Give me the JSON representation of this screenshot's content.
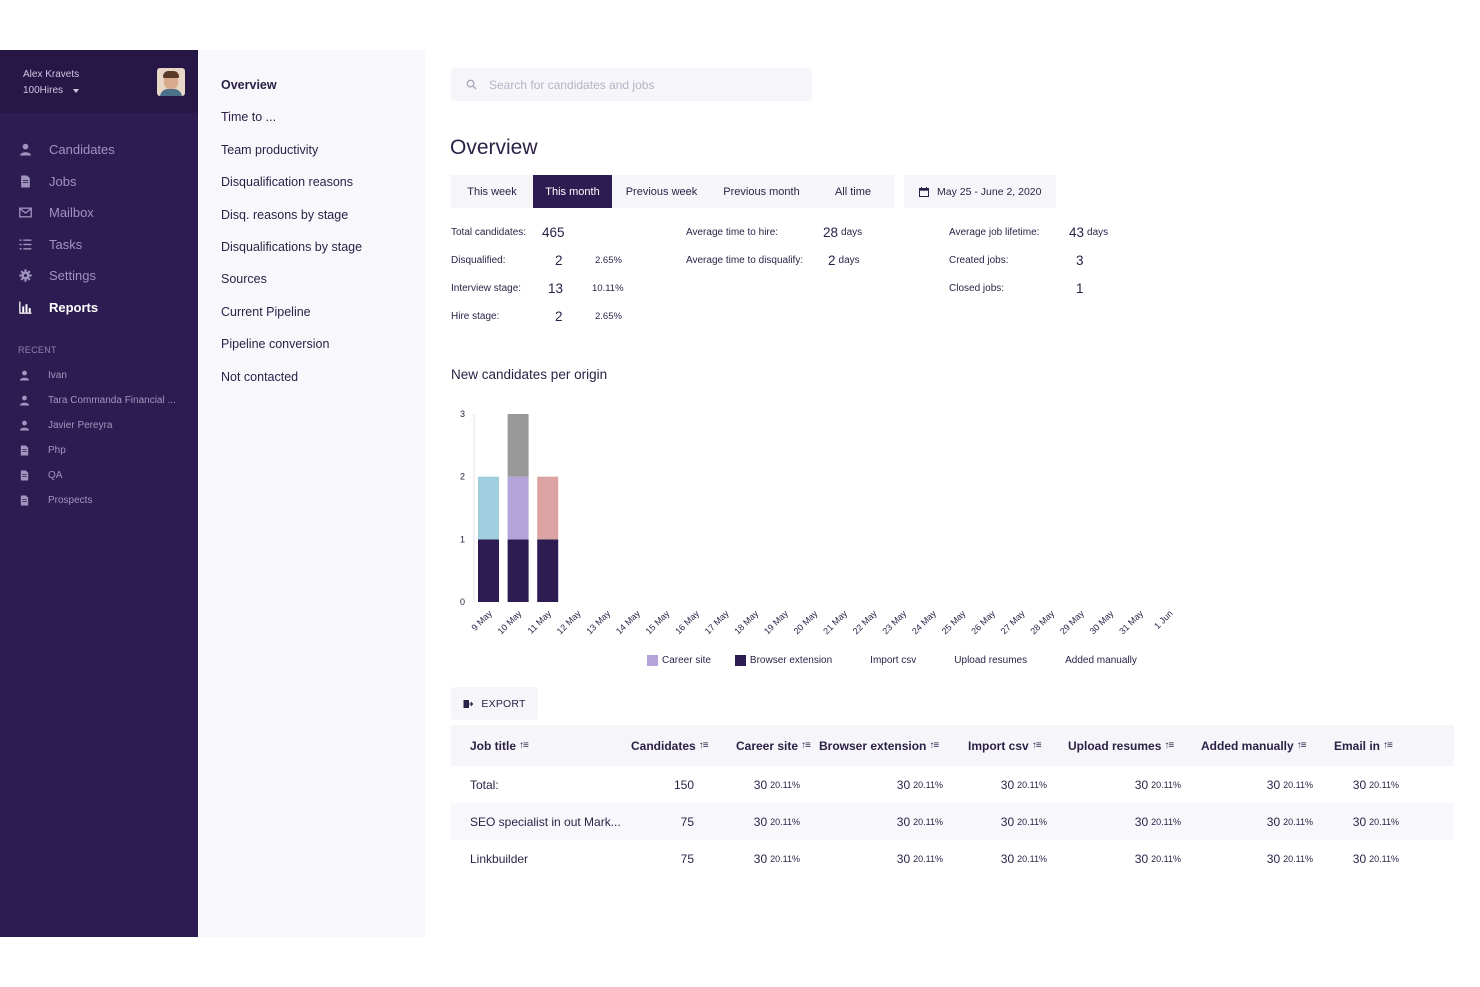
{
  "user": {
    "name": "Alex Kravets",
    "org": "100Hires"
  },
  "nav": [
    {
      "label": "Candidates",
      "icon": "person-icon",
      "active": false
    },
    {
      "label": "Jobs",
      "icon": "document-icon",
      "active": false
    },
    {
      "label": "Mailbox",
      "icon": "mail-icon",
      "active": false
    },
    {
      "label": "Tasks",
      "icon": "tasks-icon",
      "active": false
    },
    {
      "label": "Settings",
      "icon": "gear-icon",
      "active": false
    },
    {
      "label": "Reports",
      "icon": "bar-chart-icon",
      "active": true
    }
  ],
  "recent": {
    "label": "RECENT",
    "items": [
      {
        "label": "Ivan",
        "icon": "person-icon"
      },
      {
        "label": "Tara Commanda Financial ...",
        "icon": "person-icon"
      },
      {
        "label": "Javier Pereyra",
        "icon": "person-icon"
      },
      {
        "label": "Php",
        "icon": "document-icon"
      },
      {
        "label": "QA",
        "icon": "document-icon"
      },
      {
        "label": "Prospects",
        "icon": "document-icon"
      }
    ]
  },
  "subnav": [
    "Overview",
    "Time to ...",
    "Team productivity",
    "Disqualification reasons",
    "Disq. reasons by stage",
    "Disqualifications by stage",
    "Sources",
    "Current Pipeline",
    "Pipeline conversion",
    "Not contacted"
  ],
  "search": {
    "placeholder": "Search for candidates and jobs"
  },
  "page_title": "Overview",
  "tabs": [
    "This week",
    "This month",
    "Previous week",
    "Previous month",
    "All time"
  ],
  "active_tab": "This month",
  "date_range": "May 25 - June 2, 2020",
  "stats": {
    "total_candidates": {
      "label": "Total candidates:",
      "value": "465"
    },
    "disqualified": {
      "label": "Disqualified:",
      "value": "2",
      "pct": "2.65%"
    },
    "interview_stage": {
      "label": "Interview stage:",
      "value": "13",
      "pct": "10.11%"
    },
    "hire_stage": {
      "label": "Hire stage:",
      "value": "2",
      "pct": "2.65%"
    },
    "avg_time_to_hire": {
      "label": "Average time to hire:",
      "value": "28",
      "unit": "days"
    },
    "avg_time_to_disqualify": {
      "label": "Average time to disqualify:",
      "value": "2",
      "unit": "days"
    },
    "avg_job_lifetime": {
      "label": "Average job lifetime:",
      "value": "43",
      "unit": "days"
    },
    "created_jobs": {
      "label": "Created jobs:",
      "value": "3"
    },
    "closed_jobs": {
      "label": "Closed jobs:",
      "value": "1"
    }
  },
  "chart_title": "New candidates per origin",
  "chart_data": {
    "type": "bar",
    "stacked": true,
    "title": "New candidates per origin",
    "categories": [
      "9 May",
      "10 May",
      "11 May",
      "12 May",
      "13 May",
      "14 May",
      "15 May",
      "16 May",
      "17 May",
      "18 May",
      "19 May",
      "20 May",
      "21 May",
      "22 May",
      "23 May",
      "24 May",
      "25 May",
      "26 May",
      "27 May",
      "28 May",
      "29 May",
      "30 May",
      "31 May",
      "1 Jun"
    ],
    "yticks": [
      0,
      1,
      2,
      3
    ],
    "ylim": [
      0,
      3
    ],
    "series": [
      {
        "name": "Browser extension",
        "color": "#2c1c52",
        "values": [
          1,
          1,
          1,
          0,
          0,
          0,
          0,
          0,
          0,
          0,
          0,
          0,
          0,
          0,
          0,
          0,
          0,
          0,
          0,
          0,
          0,
          0,
          0,
          0
        ]
      },
      {
        "name": "",
        "color": "#dca3a3",
        "values": [
          0,
          0,
          1,
          0,
          0,
          0,
          0,
          0,
          0,
          0,
          0,
          0,
          0,
          0,
          0,
          0,
          0,
          0,
          0,
          0,
          0,
          0,
          0,
          0
        ]
      },
      {
        "name": "",
        "color": "#9fcfde",
        "values": [
          1,
          0,
          0,
          0,
          0,
          0,
          0,
          0,
          0,
          0,
          0,
          0,
          0,
          0,
          0,
          0,
          0,
          0,
          0,
          0,
          0,
          0,
          0,
          0
        ]
      },
      {
        "name": "Career site",
        "color": "#b5a3dc",
        "values": [
          0,
          1,
          0,
          0,
          0,
          0,
          0,
          0,
          0,
          0,
          0,
          0,
          0,
          0,
          0,
          0,
          0,
          0,
          0,
          0,
          0,
          0,
          0,
          0
        ]
      },
      {
        "name": "",
        "color": "#999999",
        "values": [
          0,
          1,
          0,
          0,
          0,
          0,
          0,
          0,
          0,
          0,
          0,
          0,
          0,
          0,
          0,
          0,
          0,
          0,
          0,
          0,
          0,
          0,
          0,
          0
        ]
      }
    ],
    "legend": [
      {
        "label": "Career site",
        "color": "#b5a3dc"
      },
      {
        "label": "Browser extension",
        "color": "#2c1c52"
      },
      {
        "label": "Import csv",
        "color": ""
      },
      {
        "label": "Upload resumes",
        "color": ""
      },
      {
        "label": "Added manually",
        "color": ""
      }
    ]
  },
  "export_label": "EXPORT",
  "table": {
    "columns": [
      "Job title",
      "Candidates",
      "Career site",
      "Browser extension",
      "Import csv",
      "Upload resumes",
      "Added manually",
      "Email in"
    ],
    "rows": [
      {
        "title": "Total:",
        "candidates": "150",
        "cells": [
          [
            "30",
            "20.11%"
          ],
          [
            "30",
            "20.11%"
          ],
          [
            "30",
            "20.11%"
          ],
          [
            "30",
            "20.11%"
          ],
          [
            "30",
            "20.11%"
          ],
          [
            "30",
            "20.11%"
          ]
        ]
      },
      {
        "title": "SEO specialist in out Mark...",
        "candidates": "75",
        "cells": [
          [
            "30",
            "20.11%"
          ],
          [
            "30",
            "20.11%"
          ],
          [
            "30",
            "20.11%"
          ],
          [
            "30",
            "20.11%"
          ],
          [
            "30",
            "20.11%"
          ],
          [
            "30",
            "20.11%"
          ]
        ]
      },
      {
        "title": "Linkbuilder",
        "candidates": "75",
        "cells": [
          [
            "30",
            "20.11%"
          ],
          [
            "30",
            "20.11%"
          ],
          [
            "30",
            "20.11%"
          ],
          [
            "30",
            "20.11%"
          ],
          [
            "30",
            "20.11%"
          ],
          [
            "30",
            "20.11%"
          ]
        ]
      }
    ]
  },
  "colors": {
    "sidebar": "#2c1c52",
    "sidebar_header": "#261747",
    "text": "#2a1f45",
    "panel": "#f6f5f9"
  }
}
